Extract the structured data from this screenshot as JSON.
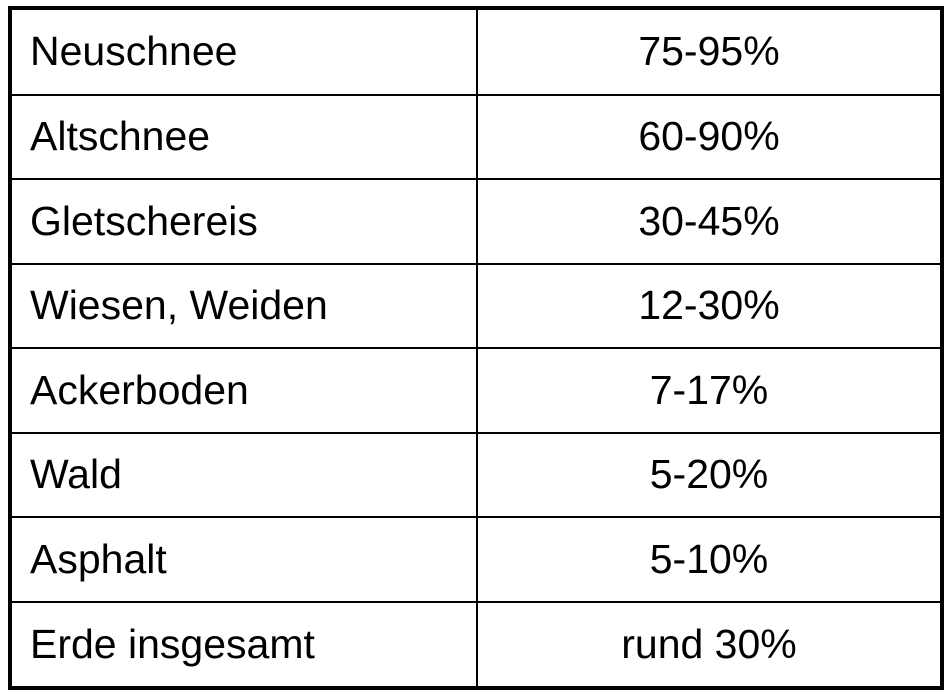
{
  "table": {
    "rows": [
      {
        "name": "Neuschnee",
        "value": "75-95%"
      },
      {
        "name": "Altschnee",
        "value": "60-90%"
      },
      {
        "name": "Gletschereis",
        "value": "30-45%"
      },
      {
        "name": "Wiesen, Weiden",
        "value": "12-30%"
      },
      {
        "name": "Ackerboden",
        "value": "7-17%"
      },
      {
        "name": "Wald",
        "value": "5-20%"
      },
      {
        "name": "Asphalt",
        "value": "5-10%"
      },
      {
        "name": "Erde insgesamt",
        "value": "rund 30%"
      }
    ]
  }
}
